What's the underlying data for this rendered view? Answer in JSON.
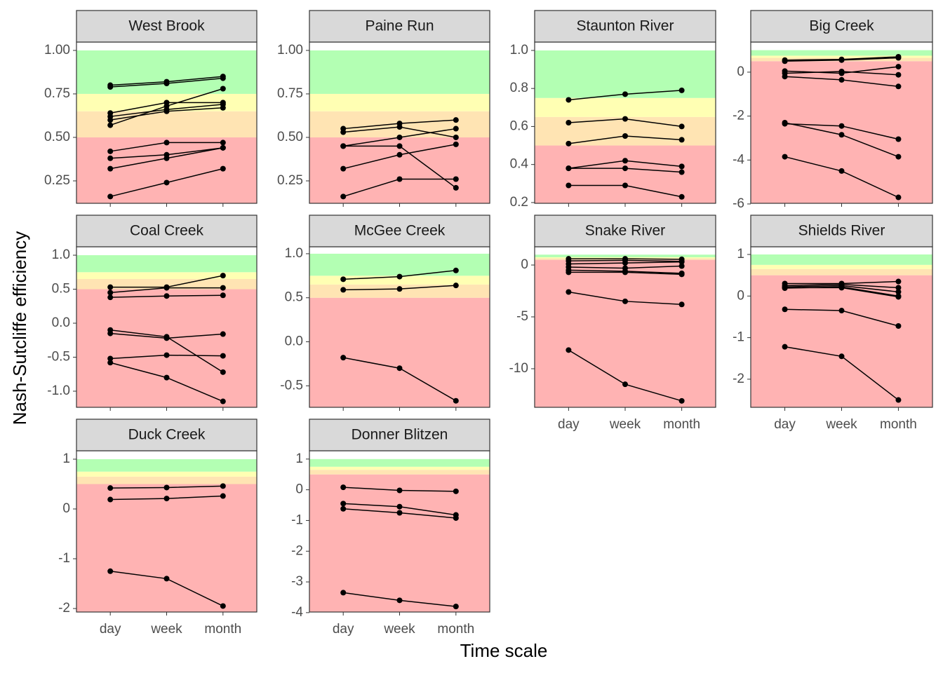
{
  "xlabel": "Time scale",
  "ylabel": "Nash-Sutcliffe efficiency",
  "chart_data": [
    {
      "type": "line",
      "title": "West Brook",
      "categories": [
        "day",
        "week",
        "month"
      ],
      "color": "#000000",
      "grid": false,
      "ylim": [
        0.121,
        1.048
      ],
      "yticks": [
        0.25,
        {
          "value": 0.5,
          "label": "0.50"
        },
        0.75,
        {
          "value": 1,
          "label": "1.00"
        }
      ],
      "band_edges": [
        0.5,
        0.65,
        0.75,
        1
      ],
      "band_colors": [
        "#ffb3b3",
        "#ffe4b3",
        "#ffffb3",
        "#b3ffb3"
      ],
      "series": [
        {
          "values": [
            0.8,
            0.82,
            0.85
          ]
        },
        {
          "values": [
            0.79,
            0.81,
            0.84
          ]
        },
        {
          "values": [
            0.57,
            0.68,
            0.78
          ]
        },
        {
          "values": [
            0.64,
            0.7,
            0.7
          ]
        },
        {
          "values": [
            0.62,
            0.66,
            0.69
          ]
        },
        {
          "values": [
            0.6,
            0.65,
            0.67
          ]
        },
        {
          "values": [
            0.42,
            0.47,
            0.47
          ]
        },
        {
          "values": [
            0.38,
            0.4,
            0.44
          ]
        },
        {
          "values": [
            0.32,
            0.38,
            0.44
          ]
        },
        {
          "values": [
            0.16,
            0.24,
            0.32
          ]
        }
      ]
    },
    {
      "type": "line",
      "title": "Paine Run",
      "categories": [
        "day",
        "week",
        "month"
      ],
      "color": "#000000",
      "grid": false,
      "ylim": [
        0.121,
        1.048
      ],
      "yticks": [
        0.25,
        {
          "value": 0.5,
          "label": "0.50"
        },
        0.75,
        {
          "value": 1,
          "label": "1.00"
        }
      ],
      "band_edges": [
        0.5,
        0.65,
        0.75,
        1
      ],
      "band_colors": [
        "#ffb3b3",
        "#ffe4b3",
        "#ffffb3",
        "#b3ffb3"
      ],
      "series": [
        {
          "values": [
            0.55,
            0.58,
            0.6
          ]
        },
        {
          "values": [
            0.53,
            0.56,
            0.5
          ]
        },
        {
          "values": [
            0.45,
            0.5,
            0.55
          ]
        },
        {
          "values": [
            0.45,
            0.45,
            0.21
          ]
        },
        {
          "values": [
            0.32,
            0.4,
            0.46
          ]
        },
        {
          "values": [
            0.16,
            0.26,
            0.26
          ]
        }
      ]
    },
    {
      "type": "line",
      "title": "Staunton River",
      "categories": [
        "day",
        "week",
        "month"
      ],
      "color": "#000000",
      "grid": false,
      "ylim": [
        0.196,
        1.044
      ],
      "yticks": [
        0.2,
        0.4,
        0.6,
        0.8,
        {
          "value": 1,
          "label": "1.0"
        }
      ],
      "band_edges": [
        0.5,
        0.65,
        0.75,
        1
      ],
      "band_colors": [
        "#ffb3b3",
        "#ffe4b3",
        "#ffffb3",
        "#b3ffb3"
      ],
      "series": [
        {
          "values": [
            0.74,
            0.77,
            0.79
          ]
        },
        {
          "values": [
            0.62,
            0.64,
            0.6
          ]
        },
        {
          "values": [
            0.51,
            0.55,
            0.53
          ]
        },
        {
          "values": [
            0.38,
            0.42,
            0.39
          ]
        },
        {
          "values": [
            0.38,
            0.38,
            0.36
          ]
        },
        {
          "values": [
            0.29,
            0.29,
            0.23
          ]
        }
      ]
    },
    {
      "type": "line",
      "title": "Big Creek",
      "categories": [
        "day",
        "week",
        "month"
      ],
      "color": "#000000",
      "grid": false,
      "ylim": [
        -5.97,
        1.37
      ],
      "yticks": [
        -6,
        -4,
        -2,
        0
      ],
      "band_edges": [
        0.5,
        0.65,
        0.75,
        1
      ],
      "band_colors": [
        "#ffb3b3",
        "#ffe4b3",
        "#ffffb3",
        "#b3ffb3"
      ],
      "series": [
        {
          "values": [
            0.55,
            0.58,
            0.7
          ]
        },
        {
          "values": [
            0.5,
            0.55,
            0.65
          ]
        },
        {
          "values": [
            0.05,
            -0.05,
            0.25
          ]
        },
        {
          "values": [
            -0.05,
            0.03,
            -0.12
          ]
        },
        {
          "values": [
            -0.2,
            -0.35,
            -0.65
          ]
        },
        {
          "values": [
            -2.35,
            -2.45,
            -3.05
          ]
        },
        {
          "values": [
            -2.3,
            -2.85,
            -3.85
          ]
        },
        {
          "values": [
            -3.85,
            -4.5,
            -5.7
          ]
        }
      ]
    },
    {
      "type": "line",
      "title": "Coal Creek",
      "categories": [
        "day",
        "week",
        "month"
      ],
      "color": "#000000",
      "grid": false,
      "ylim": [
        -1.237,
        1.124
      ],
      "yticks": [
        {
          "value": -1,
          "label": "-1.0"
        },
        -0.5,
        {
          "value": 0,
          "label": "0.0"
        },
        0.5,
        {
          "value": 1,
          "label": "1.0"
        }
      ],
      "band_edges": [
        0.5,
        0.65,
        0.75,
        1
      ],
      "band_colors": [
        "#ffb3b3",
        "#ffe4b3",
        "#ffffb3",
        "#b3ffb3"
      ],
      "series": [
        {
          "values": [
            0.53,
            0.53,
            0.7
          ]
        },
        {
          "values": [
            0.45,
            0.52,
            0.52
          ]
        },
        {
          "values": [
            0.38,
            0.4,
            0.41
          ]
        },
        {
          "values": [
            -0.1,
            -0.2,
            -0.72
          ]
        },
        {
          "values": [
            -0.15,
            -0.22,
            -0.16
          ]
        },
        {
          "values": [
            -0.52,
            -0.47,
            -0.48
          ]
        },
        {
          "values": [
            -0.58,
            -0.8,
            -1.15
          ]
        }
      ]
    },
    {
      "type": "line",
      "title": "McGee Creek",
      "categories": [
        "day",
        "week",
        "month"
      ],
      "color": "#000000",
      "grid": false,
      "ylim": [
        -0.744,
        1.079
      ],
      "yticks": [
        -0.5,
        {
          "value": 0,
          "label": "0.0"
        },
        0.5,
        {
          "value": 1,
          "label": "1.0"
        }
      ],
      "band_edges": [
        0.5,
        0.65,
        0.75,
        1
      ],
      "band_colors": [
        "#ffb3b3",
        "#ffe4b3",
        "#ffffb3",
        "#b3ffb3"
      ],
      "series": [
        {
          "values": [
            0.71,
            0.74,
            0.81
          ]
        },
        {
          "values": [
            0.59,
            0.6,
            0.64
          ]
        },
        {
          "values": [
            -0.18,
            -0.3,
            -0.67
          ]
        }
      ]
    },
    {
      "type": "line",
      "title": "Snake River",
      "categories": [
        "day",
        "week",
        "month"
      ],
      "color": "#000000",
      "grid": false,
      "ylim": [
        -13.72,
        1.76
      ],
      "yticks": [
        -10,
        -5,
        0
      ],
      "band_edges": [
        0.5,
        0.65,
        0.75,
        1
      ],
      "band_colors": [
        "#ffb3b3",
        "#ffe4b3",
        "#ffffb3",
        "#b3ffb3"
      ],
      "series": [
        {
          "values": [
            0.6,
            0.6,
            0.55
          ]
        },
        {
          "values": [
            0.4,
            0.45,
            0.35
          ]
        },
        {
          "values": [
            0.1,
            0.2,
            0.3
          ]
        },
        {
          "values": [
            -0.2,
            -0.3,
            -0.1
          ]
        },
        {
          "values": [
            -0.5,
            -0.6,
            -0.8
          ]
        },
        {
          "values": [
            -0.7,
            -0.7,
            -0.9
          ]
        },
        {
          "values": [
            -2.6,
            -3.5,
            -3.8
          ]
        },
        {
          "values": [
            -8.2,
            -11.5,
            -13.1
          ]
        }
      ]
    },
    {
      "type": "line",
      "title": "Shields River",
      "categories": [
        "day",
        "week",
        "month"
      ],
      "color": "#000000",
      "grid": false,
      "ylim": [
        -2.676,
        1.185
      ],
      "yticks": [
        -2,
        -1,
        0,
        1
      ],
      "band_edges": [
        0.5,
        0.65,
        0.75,
        1
      ],
      "band_colors": [
        "#ffb3b3",
        "#ffe4b3",
        "#ffffb3",
        "#b3ffb3"
      ],
      "series": [
        {
          "values": [
            0.3,
            0.3,
            0.35
          ]
        },
        {
          "values": [
            0.25,
            0.28,
            0.2
          ]
        },
        {
          "values": [
            0.22,
            0.25,
            0.1
          ]
        },
        {
          "values": [
            0.2,
            0.2,
            -0.02
          ]
        },
        {
          "values": [
            0.19,
            0.22,
            0.0
          ]
        },
        {
          "values": [
            -0.32,
            -0.35,
            -0.72
          ]
        },
        {
          "values": [
            -1.22,
            -1.45,
            -2.5
          ]
        }
      ]
    },
    {
      "type": "line",
      "title": "Duck Creek",
      "categories": [
        "day",
        "week",
        "month"
      ],
      "color": "#000000",
      "grid": false,
      "ylim": [
        -2.07,
        1.169
      ],
      "yticks": [
        -2,
        -1,
        0,
        1
      ],
      "band_edges": [
        0.5,
        0.65,
        0.75,
        1
      ],
      "band_colors": [
        "#ffb3b3",
        "#ffe4b3",
        "#ffffb3",
        "#b3ffb3"
      ],
      "series": [
        {
          "values": [
            0.42,
            0.43,
            0.46
          ]
        },
        {
          "values": [
            0.19,
            0.21,
            0.26
          ]
        },
        {
          "values": [
            -1.25,
            -1.4,
            -1.95
          ]
        }
      ]
    },
    {
      "type": "line",
      "title": "Donner Blitzen",
      "categories": [
        "day",
        "week",
        "month"
      ],
      "color": "#000000",
      "grid": false,
      "ylim": [
        -3.98,
        1.27
      ],
      "yticks": [
        -4,
        -3,
        -2,
        -1,
        0,
        1
      ],
      "band_edges": [
        0.5,
        0.65,
        0.75,
        1
      ],
      "band_colors": [
        "#ffb3b3",
        "#ffe4b3",
        "#ffffb3",
        "#b3ffb3"
      ],
      "series": [
        {
          "values": [
            0.08,
            -0.02,
            -0.05
          ]
        },
        {
          "values": [
            -0.45,
            -0.55,
            -0.82
          ]
        },
        {
          "values": [
            -0.62,
            -0.75,
            -0.92
          ]
        },
        {
          "values": [
            -3.35,
            -3.6,
            -3.8
          ]
        }
      ]
    }
  ]
}
